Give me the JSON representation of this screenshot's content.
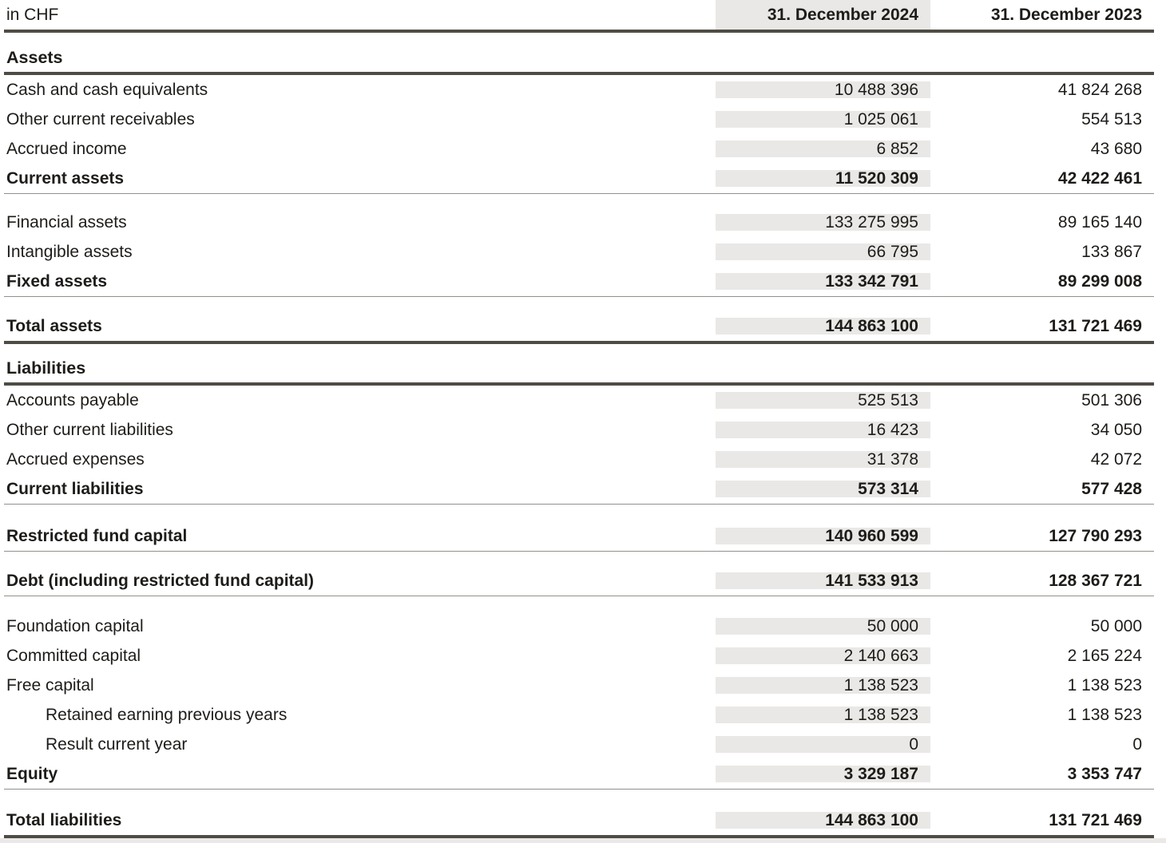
{
  "header": {
    "unit_label": "in CHF",
    "col_2024": "31. December 2024",
    "col_2023": "31. December 2023"
  },
  "assets": {
    "heading": "Assets",
    "rows": [
      {
        "label": "Cash and cash equivalents",
        "v2024": "10 488 396",
        "v2023": "41 824 268"
      },
      {
        "label": "Other current receivables",
        "v2024": "1 025 061",
        "v2023": "554 513"
      },
      {
        "label": "Accrued income",
        "v2024": "6 852",
        "v2023": "43 680"
      },
      {
        "label": "Current assets",
        "v2024": "11 520 309",
        "v2023": "42 422 461"
      },
      {
        "label": "Financial assets",
        "v2024": "133 275 995",
        "v2023": "89 165 140"
      },
      {
        "label": "Intangible assets",
        "v2024": "66 795",
        "v2023": "133 867"
      },
      {
        "label": "Fixed assets",
        "v2024": "133 342 791",
        "v2023": "89 299 008"
      },
      {
        "label": "Total assets",
        "v2024": "144 863 100",
        "v2023": "131 721 469"
      }
    ]
  },
  "liabilities": {
    "heading": "Liabilities",
    "rows": [
      {
        "label": "Accounts payable",
        "v2024": "525 513",
        "v2023": "501 306"
      },
      {
        "label": "Other current liabilities",
        "v2024": "16 423",
        "v2023": "34 050"
      },
      {
        "label": "Accrued expenses",
        "v2024": "31 378",
        "v2023": "42 072"
      },
      {
        "label": "Current liabilities",
        "v2024": "573 314",
        "v2023": "577 428"
      },
      {
        "label": "Restricted fund capital",
        "v2024": "140 960 599",
        "v2023": "127 790 293"
      },
      {
        "label": "Debt (including restricted fund capital)",
        "v2024": "141 533 913",
        "v2023": "128 367 721"
      },
      {
        "label": "Foundation capital",
        "v2024": "50 000",
        "v2023": "50 000"
      },
      {
        "label": "Committed capital",
        "v2024": "2 140 663",
        "v2023": "2 165 224"
      },
      {
        "label": "Free capital",
        "v2024": "1 138 523",
        "v2023": "1 138 523"
      },
      {
        "label": "Retained earning previous years",
        "v2024": "1 138 523",
        "v2023": "1 138 523"
      },
      {
        "label": "Result current year",
        "v2024": "0",
        "v2023": "0"
      },
      {
        "label": "Equity",
        "v2024": "3 329 187",
        "v2023": "3 353 747"
      },
      {
        "label": "Total liabilities",
        "v2024": "144 863 100",
        "v2023": "131 721 469"
      }
    ]
  },
  "colors": {
    "highlight_column_bg": "#e9e8e6",
    "rule_thick": "#4e4c44",
    "rule_thin": "#92908c",
    "text": "#1e1c19"
  }
}
